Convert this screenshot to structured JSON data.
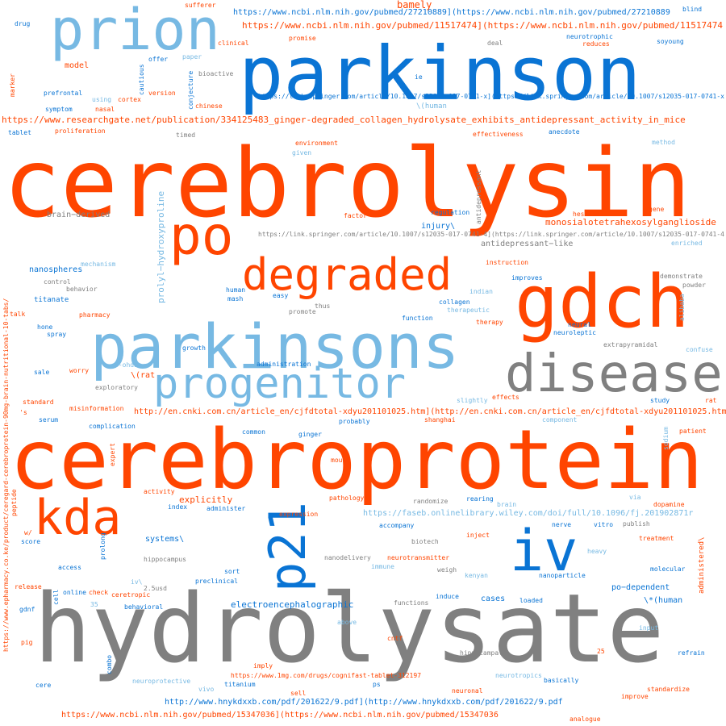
{
  "colors": {
    "orange": "#ff4500",
    "blue": "#0a74d4",
    "light_blue": "#77b9e3",
    "gray": "#808080"
  },
  "words": {
    "cerebrolysin": "cerebrolysin",
    "cerebroprotein": "cerebroprotein",
    "hydrolysate": "hydrolysate",
    "parkinson": "parkinson",
    "prion": "prion",
    "parkinsons": "parkinsons",
    "gdch": "gdch",
    "disease": "disease",
    "progenitor": "progenitor",
    "degraded": "degraded",
    "po": "po",
    "kda": "kda",
    "iv": "iv",
    "p21": "p21",
    "prolyl_hydroxyproline": "prolyl−hydroxyproline",
    "monosialo": "monosialotetrahexosylganglioside",
    "antidepressant_like": "antidepressant−like",
    "url_ncbi_27210889": "https://www.ncbi.nlm.nih.gov/pubmed/27210889](https://www.ncbi.nlm.nih.gov/pubmed/27210889",
    "url_ncbi_11517474": "https://www.ncbi.nlm.nih.gov/pubmed/11517474](https://www.ncbi.nlm.nih.gov/pubmed/11517474",
    "url_springer_long": "https://link.springer.com/article/10.1007/s12035-017-0741-x](https://link.springer.com/article/10.1007/s12035-017-0741-x",
    "url_researchgate": "https://www.researchgate.net/publication/334125483_ginger-degraded_collagen_hydrolysate_exhibits_antidepressant_activity_in_mice",
    "url_springer_short": "https://link.springer.com/article/10.1007/s12035-017-0741-4](https://link.springer.com/article/10.1007/s12035-017-0741-4",
    "url_cnki": "http://en.cnki.com.cn/article_en/cjfdtotal-xdyu201101025.htm](http://en.cnki.com.cn/article_en/cjfdtotal-xdyu201101025.htm",
    "url_faseb": "https://faseb.onlinelibrary.wiley.com/doi/full/10.1096/fj.201902871r",
    "url_hnykdxxb": "http://www.hnykdxxb.com/pdf/201622/9.pdf](http://www.hnykdxxb.com/pdf/201622/9.pdf",
    "url_ncbi_15347036": "https://www.ncbi.nlm.nih.gov/pubmed/15347036](https://www.ncbi.nlm.nih.gov/pubmed/15347036",
    "url_1mg": "https://www.1mg.com/drugs/cognifast-tablet-312197",
    "url_epharmacy": "https://www.epharmacy.co.ke/product/ceregard-cerebroprotein-90mg-brain-nutritional-10-tabs/",
    "bamely": "bamely",
    "sufferer": "sufferer",
    "blind": "blind",
    "drug": "drug",
    "clinical": "clinical",
    "promise": "promise",
    "deal": "deal",
    "neurotrophic": "neurotrophic",
    "reduces": "reduces",
    "soyoung": "soyoung",
    "model": "model",
    "offer": "offer",
    "paper": "paper",
    "bioactive": "bioactive",
    "ie": "ie",
    "marker": "marker",
    "prefrontal": "prefrontal",
    "using": "using",
    "cautious": "cautious",
    "version": "version",
    "conjecture": "conjecture",
    "cortex": "cortex",
    "symptom": "symptom",
    "nasal": "nasal",
    "chinese": "chinese",
    "human_esc": "\\(human",
    "tablet": "tablet",
    "proliferation": "proliferation",
    "timed": "timed",
    "effectiveness": "effectiveness",
    "anecdote": "anecdote",
    "environment": "environment",
    "given": "given",
    "method": "method",
    "antidepressant": "antidepressant",
    "hesitant": "hesitant",
    "gene": "gene",
    "brain_derived": "brain−derived",
    "factor": "factor",
    "regulation": "regulation",
    "injury": "injury\\",
    "enriched": "enriched",
    "nanospheres": "nanospheres",
    "mechanism": "mechanism",
    "instruction": "instruction",
    "demonstrate": "demonstrate",
    "powder": "powder",
    "control": "control",
    "behavior": "behavior",
    "improves": "improves",
    "human": "human",
    "mash": "mash",
    "easy": "easy",
    "indian": "indian",
    "alibaba": "alibaba",
    "titanate": "titanate",
    "collagen": "collagen",
    "thus": "thus",
    "promote": "promote",
    "therapeutic": "therapeutic",
    "talk": "talk",
    "pharmacy": "pharmacy",
    "function": "function",
    "therapy": "therapy",
    "neural": "neural",
    "neuroleptic": "neuroleptic",
    "hone": "hone",
    "spray": "spray",
    "extrapyramidal": "extrapyramidal",
    "growth": "growth",
    "confuse": "confuse",
    "ohda": "6-ohda",
    "administration": "administration",
    "sale": "sale",
    "worry": "worry",
    "rat_esc": "\\(rat",
    "exploratory": "exploratory",
    "effects": "effects",
    "slightly": "slightly",
    "study": "study",
    "rat": "rat",
    "standard": "standard",
    "s": "'s",
    "misinformation": "misinformation",
    "serum": "serum",
    "probably": "probably",
    "shanghai": "shanghai",
    "component": "component",
    "complication": "complication",
    "common": "common",
    "ginger": "ginger",
    "sodium": "sodium",
    "patient": "patient",
    "expert": "expert",
    "mouse": "mouse",
    "amaze": "amaze",
    "activity": "activity",
    "explicitly": "explicitly",
    "index": "index",
    "administer": "administer",
    "pathology": "pathology",
    "randomize": "randomize",
    "rearing": "rearing",
    "brain": "brain",
    "via": "via",
    "dopamine": "dopamine",
    "n90": "90",
    "peptide": "peptide",
    "expression": "expression",
    "w": "w/",
    "accompany": "accompany",
    "nerve": "nerve",
    "vitro": "vitro",
    "publish": "publish",
    "score": "score",
    "systems": "systems\\",
    "prolong": "prolong",
    "biotech": "biotech",
    "inject": "inject",
    "treatment": "treatment",
    "administered": "administered\\",
    "hippocampus": "hippocampus",
    "neurotransmitter": "neurotransmitter",
    "heavy": "heavy",
    "access": "access",
    "nanodelivery": "nanodelivery",
    "sort": "sort",
    "immune": "immune",
    "weigh": "weigh",
    "molecular": "molecular",
    "kenyan": "kenyan",
    "nanoparticle": "nanoparticle",
    "release": "release",
    "iv_esc": "iv\\",
    "usd": "2.5usd",
    "preclinical": "preclinical",
    "po_dependent": "po−dependent",
    "online": "online",
    "check": "check",
    "cell": "cell",
    "ceretropic": "ceretropic",
    "induce": "induce",
    "cases": "cases",
    "loaded": "loaded",
    "human_star": "\\*(human",
    "n35": "35",
    "behavioral": "behavioral",
    "electro": "electroencephalographic",
    "functions": "functions",
    "gdnf": "gdnf",
    "above": "above",
    "input": "input",
    "pig": "pig",
    "cntf": "cntf",
    "hippocampal": "hippocampal",
    "n25": "25",
    "refrain": "refrain",
    "combo": "combo",
    "imply": "imply",
    "neurotropics": "neurotropics",
    "basically": "basically",
    "neuroprotective": "neuroprotective",
    "titanium": "titanium",
    "ps": "ps",
    "cere": "cere",
    "vivo": "vivo",
    "sell": "sell",
    "neuronal": "neuronal",
    "standardize": "standardize",
    "improve": "improve",
    "analogue": "analogue"
  }
}
